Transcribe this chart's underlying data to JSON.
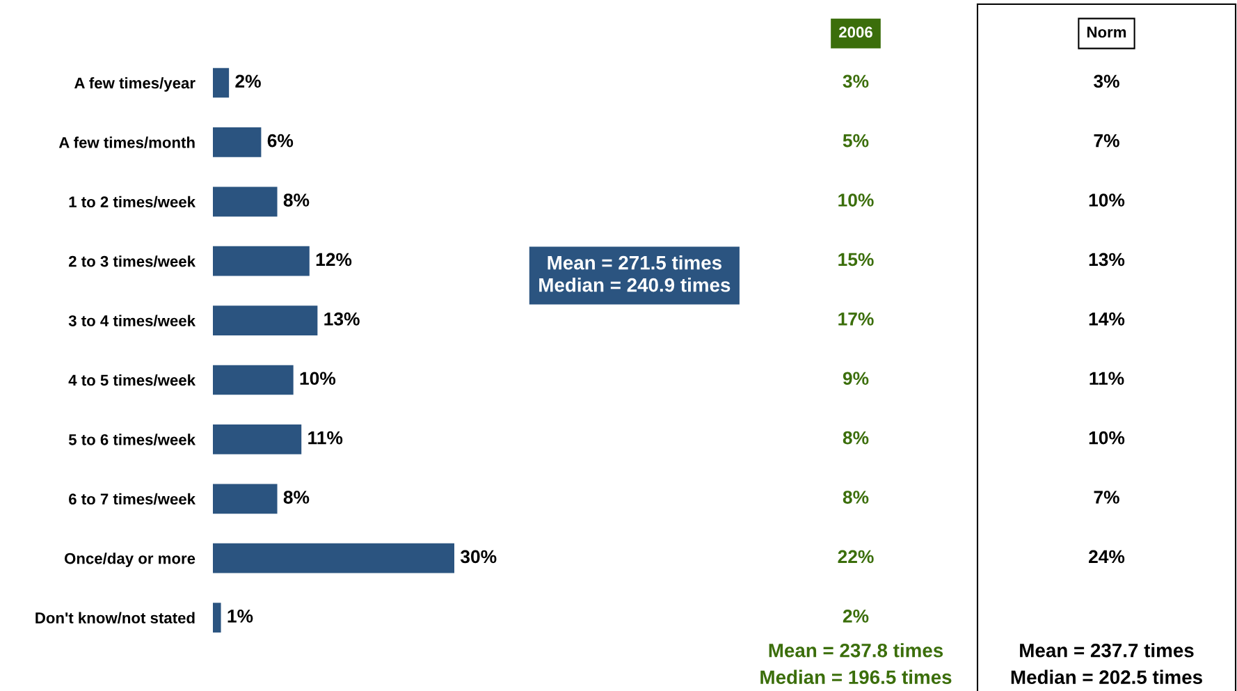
{
  "chart_data": [
    {
      "type": "bar",
      "orientation": "horizontal",
      "categories": [
        "A few times/year",
        "A few times/month",
        "1 to 2 times/week",
        "2 to 3 times/week",
        "3 to 4 times/week",
        "4 to 5 times/week",
        "5 to 6 times/week",
        "6 to 7 times/week",
        "Once/day or more",
        "Don't know/not stated"
      ],
      "values": [
        2,
        6,
        8,
        12,
        13,
        10,
        11,
        8,
        30,
        1
      ],
      "value_labels": [
        "2%",
        "6%",
        "8%",
        "12%",
        "13%",
        "10%",
        "11%",
        "8%",
        "30%",
        "1%"
      ],
      "color": "#2b5480",
      "tick_labels": "y",
      "grid": false,
      "legend": false,
      "annotations": [
        "Mean = 271.5 times\nMedian = 240.9 times"
      ]
    },
    {
      "type": "other",
      "title": "2006",
      "color": "#3b6e0b",
      "categories": [
        null,
        null,
        null,
        null,
        null,
        null,
        null,
        null,
        null,
        null
      ],
      "values": [
        3,
        5,
        10,
        15,
        17,
        9,
        8,
        8,
        22,
        2
      ],
      "value_labels": [
        "3%",
        "5%",
        "10%",
        "15%",
        "17%",
        "9%",
        "8%",
        "8%",
        "22%",
        "2%"
      ],
      "annotations": [
        "Mean = 237.8 times",
        "Median = 196.5 times"
      ]
    },
    {
      "type": "other",
      "title": "Norm",
      "color": "#000000",
      "categories": [
        null,
        null,
        null,
        null,
        null,
        null,
        null,
        null,
        null,
        null
      ],
      "values": [
        3,
        7,
        10,
        13,
        14,
        11,
        10,
        7,
        24,
        null
      ],
      "value_labels": [
        "3%",
        "7%",
        "10%",
        "13%",
        "14%",
        "11%",
        "10%",
        "7%",
        "24%",
        null
      ],
      "annotations": [
        "Mean = 237.7 times",
        "Median = 202.5 times"
      ]
    }
  ]
}
